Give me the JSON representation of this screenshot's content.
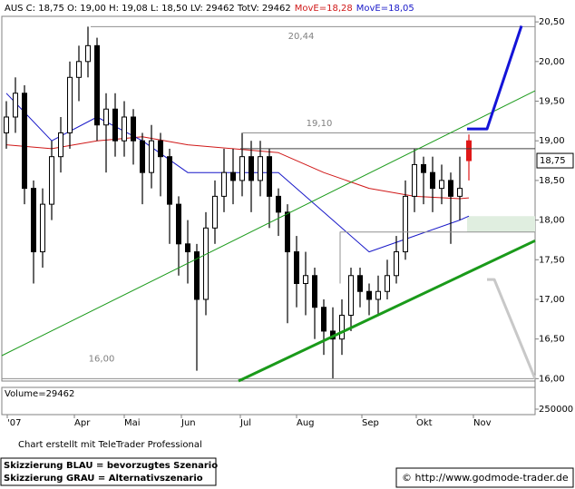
{
  "chart_data": {
    "type": "candlestick",
    "header_parts": [
      {
        "text": "AUS C: 18,75 O: 19,00 H: 19,08 L: 18,50 LV: 29462 TotV: 29462",
        "color": "#000000"
      },
      {
        "text": "MovE=18,28",
        "color": "#d01818"
      },
      {
        "text": "MovE=18,05",
        "color": "#1818c8"
      }
    ],
    "x": [
      0.5,
      1.5,
      2.5,
      3.5,
      4.5,
      5.5,
      6.5,
      7.5,
      8.5,
      9.5,
      10.5,
      11.5,
      12.5,
      13.5,
      14.5,
      15.5,
      16.5,
      17.5,
      18.5,
      19.5,
      20.5,
      21.5,
      22.5,
      23.5,
      24.5,
      25.5,
      26.5,
      27.5,
      28.5,
      29.5,
      30.5,
      31.5,
      32.5,
      33.5,
      34.5,
      35.5,
      36.5,
      37.5,
      38.5,
      39.5,
      40.5,
      41.5,
      42.5,
      43.5,
      44.5,
      45.5,
      46.5,
      47.5,
      48.5,
      49.5,
      50.5,
      51.5
    ],
    "open": [
      19.1,
      19.3,
      19.6,
      18.4,
      17.6,
      18.2,
      18.8,
      19.1,
      19.8,
      20.0,
      20.2,
      19.2,
      19.4,
      19.0,
      19.3,
      19.0,
      18.6,
      19.0,
      18.8,
      18.2,
      17.7,
      17.6,
      17.0,
      17.9,
      18.3,
      18.6,
      18.5,
      18.8,
      18.5,
      18.8,
      18.3,
      18.1,
      17.6,
      17.2,
      17.3,
      16.9,
      16.6,
      16.5,
      16.8,
      17.3,
      17.1,
      17.0,
      17.1,
      17.3,
      17.6,
      18.3,
      18.7,
      18.6,
      18.4,
      18.5,
      18.3,
      19.0
    ],
    "high": [
      19.5,
      19.8,
      19.7,
      18.5,
      18.4,
      19.0,
      19.3,
      20.0,
      20.2,
      20.44,
      20.3,
      19.6,
      19.6,
      19.5,
      19.4,
      19.1,
      19.2,
      19.1,
      18.9,
      18.3,
      18.0,
      17.7,
      18.1,
      18.5,
      18.9,
      18.9,
      19.1,
      19.0,
      19.0,
      18.9,
      18.4,
      18.2,
      17.8,
      17.6,
      17.4,
      17.0,
      16.9,
      17.0,
      17.4,
      17.4,
      17.2,
      17.3,
      17.5,
      17.8,
      18.5,
      18.9,
      18.8,
      18.8,
      18.7,
      18.6,
      18.8,
      19.08
    ],
    "low": [
      18.9,
      19.1,
      18.2,
      17.2,
      17.4,
      18.0,
      18.6,
      18.9,
      19.5,
      19.8,
      19.0,
      18.6,
      18.8,
      18.8,
      18.7,
      18.2,
      18.4,
      18.3,
      17.7,
      17.3,
      17.2,
      16.1,
      16.8,
      17.7,
      18.1,
      18.2,
      18.3,
      18.1,
      18.3,
      17.9,
      17.8,
      16.7,
      16.9,
      16.8,
      16.5,
      16.3,
      16.0,
      16.3,
      16.6,
      16.9,
      16.8,
      16.8,
      17.0,
      17.2,
      17.5,
      18.1,
      18.2,
      18.1,
      18.2,
      17.7,
      18.0,
      18.5
    ],
    "close": [
      19.3,
      19.6,
      18.4,
      17.6,
      18.2,
      18.8,
      19.1,
      19.8,
      20.0,
      20.2,
      19.2,
      19.4,
      19.0,
      19.3,
      19.0,
      18.6,
      19.0,
      18.8,
      18.2,
      17.7,
      17.6,
      17.0,
      17.9,
      18.3,
      18.6,
      18.5,
      18.8,
      18.5,
      18.8,
      18.3,
      18.1,
      17.6,
      17.2,
      17.3,
      16.9,
      16.6,
      16.5,
      16.8,
      17.3,
      17.1,
      17.0,
      17.1,
      17.3,
      17.6,
      18.3,
      18.7,
      18.6,
      18.4,
      18.5,
      18.3,
      18.4,
      18.75
    ],
    "candle_color": "#000000",
    "last_candle_color": "#e01818",
    "last_price_label": "18,75",
    "moving_averages": [
      {
        "color": "#d01818",
        "x": [
          0.5,
          5.5,
          10.5,
          15.5,
          20.5,
          25.5,
          30.5,
          35.5,
          40.5,
          45.5,
          50.5,
          51.5
        ],
        "values": [
          18.95,
          18.9,
          19.0,
          19.05,
          18.95,
          18.9,
          18.85,
          18.6,
          18.4,
          18.3,
          18.27,
          18.28
        ]
      },
      {
        "color": "#1818c8",
        "x": [
          0.5,
          5.5,
          10.5,
          15.5,
          20.5,
          25.5,
          30.5,
          35.5,
          40.5,
          45.5,
          50.5,
          51.5
        ],
        "values": [
          19.6,
          19.0,
          19.3,
          19.0,
          18.6,
          18.6,
          18.6,
          18.1,
          17.6,
          17.8,
          18.0,
          18.05
        ]
      }
    ],
    "bands": [
      {
        "x": [
          51.3,
          58.8
        ],
        "y": [
          18.05,
          17.85
        ],
        "fill": "#e0eee0"
      }
    ],
    "overlays": [
      {
        "color": "#909090",
        "width": 1,
        "x": [
          0,
          58.8
        ],
        "y": [
          16.0,
          16.0
        ]
      },
      {
        "color": "#909090",
        "width": 1,
        "x": [
          9.8,
          58.8
        ],
        "y": [
          20.44,
          20.44
        ]
      },
      {
        "color": "#909090",
        "width": 1,
        "x": [
          26.5,
          58.8
        ],
        "y": [
          19.1,
          19.1
        ]
      },
      {
        "color": "#404040",
        "width": 1,
        "x": [
          26.3,
          58.8
        ],
        "y": [
          18.9,
          18.9
        ]
      },
      {
        "color": "#909090",
        "width": 1,
        "x": [
          37.3,
          37.3,
          58.8
        ],
        "y": [
          17.2,
          17.85,
          17.85
        ]
      },
      {
        "color": "#1a9a1a",
        "width": 1,
        "x": [
          0,
          58.8
        ],
        "y": [
          16.29,
          19.63
        ]
      },
      {
        "color": "#1a9a1a",
        "width": 3,
        "x": [
          26.1,
          58.8
        ],
        "y": [
          15.97,
          17.74
        ]
      },
      {
        "color": "#1414d8",
        "width": 3,
        "x": [
          51.3,
          53.5,
          57.3
        ],
        "y": [
          19.15,
          19.15,
          20.45
        ]
      },
      {
        "color": "#c8c8c8",
        "width": 3,
        "x": [
          53.5,
          54.3,
          58.8
        ],
        "y": [
          17.25,
          17.25,
          16.0
        ]
      }
    ],
    "annotations": [
      {
        "text": "20,44",
        "x": 33,
        "y": 20.32,
        "color": "#808080"
      },
      {
        "text": "19,10",
        "x": 35,
        "y": 19.22,
        "color": "#808080"
      },
      {
        "text": "16,00",
        "x": 11,
        "y": 16.25,
        "color": "#808080"
      }
    ],
    "xlim": [
      0,
      58.8
    ],
    "xticks": [
      {
        "value": 0.6,
        "label": "'07"
      },
      {
        "value": 8,
        "label": "Apr"
      },
      {
        "value": 13.5,
        "label": "Mai"
      },
      {
        "value": 19.8,
        "label": "Jun"
      },
      {
        "value": 26.3,
        "label": "Jul"
      },
      {
        "value": 32.5,
        "label": "Aug"
      },
      {
        "value": 39.7,
        "label": "Sep"
      },
      {
        "value": 45.7,
        "label": "Okt"
      },
      {
        "value": 52,
        "label": "Nov"
      }
    ],
    "ylim": [
      15.97,
      20.57
    ],
    "yticks": [
      {
        "value": 16,
        "label": "16,00"
      },
      {
        "value": 16.5,
        "label": "16,50"
      },
      {
        "value": 17,
        "label": "17,00"
      },
      {
        "value": 17.5,
        "label": "17,50"
      },
      {
        "value": 18,
        "label": "18,00"
      },
      {
        "value": 18.5,
        "label": "18,50"
      },
      {
        "value": 19,
        "label": "19,00"
      },
      {
        "value": 19.5,
        "label": "19,50"
      },
      {
        "value": 20,
        "label": "20,00"
      },
      {
        "value": 20.5,
        "label": "20,50"
      }
    ],
    "volume_title": "Volume=29462",
    "volume_yticks": [
      250000
    ]
  },
  "footer": {
    "credit": "Chart erstellt mit TeleTrader Professional",
    "legend_lines": [
      "Skizzierung BLAU = bevorzugtes Szenario",
      "Skizzierung GRAU = Alternativszenario"
    ],
    "source": "© http://www.godmode-trader.de"
  }
}
